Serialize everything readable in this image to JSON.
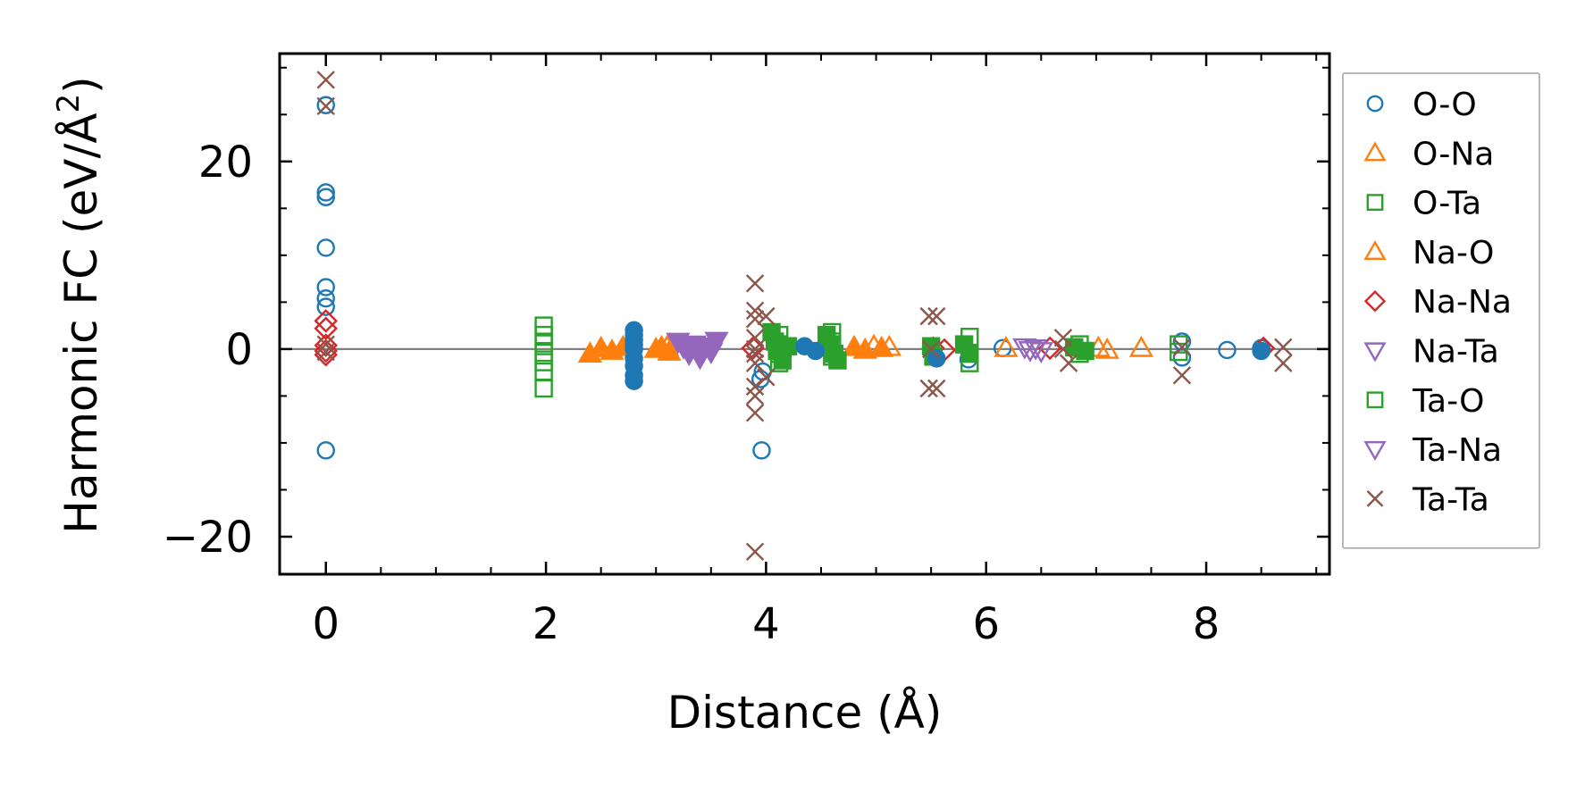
{
  "chart_data": {
    "type": "scatter",
    "xlabel": "Distance (Å)",
    "ylabel": "Harmonic FC (eV/Å²)",
    "ylabel_parts": {
      "base": "Harmonic FC (eV/Å",
      "sup": "2",
      "tail": ")"
    },
    "xlim": [
      -0.42,
      9.12
    ],
    "ylim": [
      -24,
      31.5
    ],
    "xticks": [
      0,
      2,
      4,
      6,
      8
    ],
    "xtick_labels": [
      "0",
      "2",
      "4",
      "6",
      "8"
    ],
    "yticks": [
      -20,
      0,
      20
    ],
    "ytick_labels": [
      "−20",
      "0",
      "20"
    ],
    "y_minor_step": 5,
    "x_minor_step": 0.5,
    "zero_line": true,
    "grid": false,
    "legend_position": "outside-right",
    "series": [
      {
        "name": "O-O",
        "marker": "circle",
        "filled": false,
        "color": "#1f77b4",
        "points": [
          [
            0,
            26
          ],
          [
            0,
            16.7
          ],
          [
            0,
            16.2
          ],
          [
            0,
            10.8
          ],
          [
            0,
            6.6
          ],
          [
            0,
            5.4
          ],
          [
            0,
            4.5
          ],
          [
            0,
            -10.8
          ],
          [
            3.96,
            -10.8
          ],
          [
            3.95,
            -3.2
          ],
          [
            3.97,
            -2.4
          ],
          [
            5.84,
            -1.1
          ],
          [
            7.78,
            -0.9
          ],
          [
            7.78,
            0.8
          ],
          [
            8.19,
            -0.1
          ],
          [
            6.15,
            0.1
          ],
          [
            8.5,
            0.1
          ]
        ]
      },
      {
        "name": "O-Na",
        "marker": "triangle-up",
        "filled": false,
        "color": "#ff7f0e",
        "points": [
          [
            4.98,
            0.3
          ],
          [
            5.12,
            0.2
          ],
          [
            7.02,
            0.1
          ],
          [
            7.1,
            -0.1
          ],
          [
            7.41,
            0.1
          ],
          [
            6.18,
            0.1
          ],
          [
            3.1,
            0.2
          ]
        ]
      },
      {
        "name": "O-Ta",
        "marker": "square",
        "filled": false,
        "color": "#2ca02c",
        "points": [
          [
            1.98,
            2.5
          ],
          [
            1.98,
            1.5
          ],
          [
            1.98,
            0.6
          ],
          [
            1.98,
            -0.4
          ],
          [
            1.98,
            -1.4
          ],
          [
            1.98,
            -2.4
          ],
          [
            1.98,
            -4.2
          ],
          [
            4.12,
            1.5
          ],
          [
            4.12,
            0.5
          ],
          [
            4.12,
            -0.5
          ],
          [
            4.12,
            -1.5
          ],
          [
            4.6,
            1.8
          ],
          [
            4.6,
            0.8
          ],
          [
            4.6,
            -0.8
          ],
          [
            5.85,
            1.3
          ],
          [
            5.85,
            -1.5
          ],
          [
            6.85,
            0.5
          ],
          [
            6.85,
            -0.5
          ],
          [
            7.75,
            0.5
          ],
          [
            7.75,
            -0.3
          ]
        ]
      },
      {
        "name": "Na-O",
        "marker": "triangle-up",
        "filled": true,
        "color": "#ff7f0e",
        "points": [
          [
            2.4,
            -0.5
          ],
          [
            2.5,
            0.1
          ],
          [
            2.6,
            -0.2
          ],
          [
            2.7,
            0.2
          ],
          [
            3.0,
            0.0
          ],
          [
            3.05,
            0.2
          ],
          [
            3.12,
            -0.3
          ],
          [
            4.8,
            0.2
          ],
          [
            4.9,
            -0.1
          ],
          [
            5.05,
            0.1
          ]
        ]
      },
      {
        "name": "Na-Na",
        "marker": "diamond",
        "filled": false,
        "color": "#d62728",
        "points": [
          [
            0,
            3.0
          ],
          [
            0,
            2.2
          ],
          [
            0,
            0.4
          ],
          [
            0,
            -0.2
          ],
          [
            0,
            -0.6
          ],
          [
            3.88,
            0.1
          ],
          [
            5.52,
            0.1
          ],
          [
            5.62,
            -0.1
          ],
          [
            6.58,
            0.1
          ],
          [
            8.52,
            0.1
          ]
        ]
      },
      {
        "name": "Na-Ta",
        "marker": "triangle-down",
        "filled": false,
        "color": "#9467bd",
        "points": [
          [
            6.35,
            0.2
          ],
          [
            6.4,
            -0.1
          ],
          [
            6.45,
            0.1
          ],
          [
            6.5,
            -0.2
          ]
        ]
      },
      {
        "name": "Ta-O",
        "marker": "square",
        "filled": true,
        "color": "#2ca02c",
        "points": [
          [
            4.05,
            1.8
          ],
          [
            4.08,
            0.8
          ],
          [
            4.1,
            -0.2
          ],
          [
            4.15,
            -1.2
          ],
          [
            4.2,
            0.3
          ],
          [
            4.55,
            1.5
          ],
          [
            4.58,
            0.5
          ],
          [
            4.62,
            -0.5
          ],
          [
            4.65,
            -1.2
          ],
          [
            5.5,
            0.3
          ],
          [
            5.52,
            -0.8
          ],
          [
            5.8,
            0.5
          ],
          [
            5.85,
            -0.5
          ],
          [
            6.8,
            0.2
          ],
          [
            6.9,
            -0.2
          ]
        ]
      },
      {
        "name": "Ta-Na",
        "marker": "triangle-down",
        "filled": true,
        "color": "#9467bd",
        "points": [
          [
            3.2,
            0.8
          ],
          [
            3.25,
            0.2
          ],
          [
            3.3,
            -0.5
          ],
          [
            3.35,
            0.5
          ],
          [
            3.4,
            -0.9
          ],
          [
            3.45,
            0.3
          ],
          [
            3.5,
            -0.3
          ],
          [
            3.55,
            0.9
          ]
        ]
      },
      {
        "name": "O-O-filled",
        "legend": false,
        "marker": "circle",
        "filled": true,
        "color": "#1f77b4",
        "points": [
          [
            2.8,
            2.0
          ],
          [
            2.8,
            1.5
          ],
          [
            2.8,
            1.0
          ],
          [
            2.8,
            0.5
          ],
          [
            2.8,
            0.0
          ],
          [
            2.8,
            -1.0
          ],
          [
            2.8,
            -1.8
          ],
          [
            2.8,
            -2.8
          ],
          [
            2.8,
            -3.4
          ],
          [
            4.35,
            0.3
          ],
          [
            4.45,
            -0.2
          ],
          [
            5.55,
            -1.0
          ],
          [
            8.5,
            -0.2
          ]
        ]
      },
      {
        "name": "Ta-Ta",
        "marker": "x",
        "filled": false,
        "color": "#8c564b",
        "points": [
          [
            0,
            28.7
          ],
          [
            0,
            25.9
          ],
          [
            0,
            0.5
          ],
          [
            0,
            -0.3
          ],
          [
            3.9,
            7.0
          ],
          [
            3.9,
            4.1
          ],
          [
            3.9,
            3.2
          ],
          [
            3.9,
            1.2
          ],
          [
            3.9,
            0.0
          ],
          [
            3.9,
            -0.5
          ],
          [
            3.9,
            -1.5
          ],
          [
            3.9,
            -4.0
          ],
          [
            3.9,
            -5.0
          ],
          [
            3.9,
            -6.8
          ],
          [
            3.9,
            -21.6
          ],
          [
            4.0,
            3.5
          ],
          [
            4.0,
            -3.0
          ],
          [
            5.48,
            3.5
          ],
          [
            5.55,
            3.5
          ],
          [
            5.48,
            -4.2
          ],
          [
            5.55,
            -4.2
          ],
          [
            5.5,
            0.0
          ],
          [
            6.7,
            1.2
          ],
          [
            6.75,
            -1.5
          ],
          [
            6.7,
            0.0
          ],
          [
            7.78,
            0.2
          ],
          [
            7.78,
            -2.8
          ],
          [
            8.7,
            0.2
          ],
          [
            8.7,
            -1.5
          ]
        ]
      }
    ]
  }
}
